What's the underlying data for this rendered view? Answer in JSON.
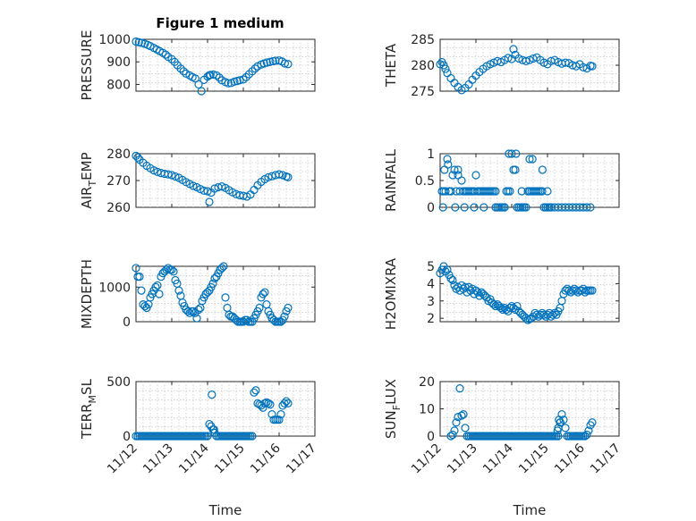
{
  "figure": {
    "title": "Figure 1 medium",
    "marker_color": "#0072BD",
    "axis_color": "#262626",
    "x_tick_labels": [
      "11/12",
      "11/13",
      "11/14",
      "11/15",
      "11/16",
      "11/17"
    ],
    "x_label": "Time"
  },
  "chart_data": [
    {
      "id": "pressure",
      "type": "scatter",
      "title": "Figure 1 medium",
      "ylabel": "PRESSURE",
      "ylabel_main": "PRESSURE",
      "ylabel_sub": "",
      "ylabel_tail": "",
      "xlabel": "",
      "xlim": [
        0,
        5
      ],
      "ylim": [
        770,
        1000
      ],
      "yticks": [
        800,
        900,
        1000
      ],
      "yticklabels": [
        "800",
        "900",
        "1000"
      ],
      "grid": true,
      "x": [
        0.0,
        0.08,
        0.16,
        0.25,
        0.33,
        0.4,
        0.5,
        0.58,
        0.66,
        0.75,
        0.83,
        0.9,
        1.0,
        1.08,
        1.16,
        1.25,
        1.33,
        1.4,
        1.5,
        1.58,
        1.66,
        1.75,
        1.83,
        1.9,
        2.0,
        2.05,
        2.08,
        2.16,
        2.25,
        2.33,
        2.4,
        2.5,
        2.58,
        2.66,
        2.75,
        2.83,
        2.9,
        3.0,
        3.08,
        3.16,
        3.25,
        3.33,
        3.4,
        3.5,
        3.58,
        3.66,
        3.75,
        3.83,
        3.9,
        4.0,
        4.08,
        4.16,
        4.25
      ],
      "y": [
        990,
        987,
        984,
        980,
        975,
        970,
        962,
        955,
        948,
        940,
        932,
        922,
        912,
        900,
        885,
        870,
        858,
        848,
        840,
        832,
        826,
        800,
        770,
        820,
        835,
        840,
        842,
        844,
        840,
        830,
        818,
        810,
        805,
        806,
        812,
        815,
        818,
        822,
        832,
        845,
        858,
        870,
        880,
        888,
        893,
        897,
        900,
        903,
        905,
        906,
        902,
        893,
        890
      ]
    },
    {
      "id": "theta",
      "type": "scatter",
      "ylabel": "THETA",
      "ylabel_main": "THETA",
      "ylabel_sub": "",
      "ylabel_tail": "",
      "xlabel": "",
      "xlim": [
        0,
        5
      ],
      "ylim": [
        275,
        285
      ],
      "yticks": [
        275,
        280,
        285
      ],
      "yticklabels": [
        "275",
        "280",
        "285"
      ],
      "grid": true,
      "x": [
        0.0,
        0.05,
        0.1,
        0.15,
        0.2,
        0.3,
        0.4,
        0.5,
        0.6,
        0.7,
        0.8,
        0.9,
        1.0,
        1.1,
        1.2,
        1.3,
        1.4,
        1.5,
        1.6,
        1.7,
        1.8,
        1.9,
        2.0,
        2.05,
        2.1,
        2.2,
        2.3,
        2.4,
        2.5,
        2.6,
        2.7,
        2.8,
        2.9,
        3.0,
        3.1,
        3.2,
        3.3,
        3.4,
        3.5,
        3.6,
        3.7,
        3.8,
        3.9,
        4.0,
        4.1,
        4.2,
        4.25
      ],
      "y": [
        280.2,
        280.6,
        280.0,
        279.3,
        278.5,
        277.5,
        276.6,
        275.8,
        275.2,
        275.6,
        276.3,
        277.2,
        278.0,
        278.7,
        279.3,
        279.8,
        280.2,
        280.5,
        280.8,
        280.6,
        281.0,
        281.4,
        281.2,
        283.1,
        282.0,
        281.3,
        281.0,
        280.8,
        281.0,
        281.3,
        281.5,
        281.0,
        280.5,
        280.2,
        280.8,
        281.0,
        280.6,
        280.3,
        280.5,
        280.4,
        280.0,
        279.8,
        280.2,
        279.6,
        279.4,
        279.9,
        279.8
      ]
    },
    {
      "id": "air_temp",
      "type": "scatter",
      "ylabel": "AIR_TEMP",
      "ylabel_main": "AIR",
      "ylabel_sub": "T",
      "ylabel_tail": "EMP",
      "xlabel": "",
      "xlim": [
        0,
        5
      ],
      "ylim": [
        260,
        280
      ],
      "yticks": [
        260,
        270,
        280
      ],
      "yticklabels": [
        "260",
        "270",
        "280"
      ],
      "grid": true,
      "x": [
        0.0,
        0.05,
        0.1,
        0.2,
        0.3,
        0.4,
        0.5,
        0.6,
        0.7,
        0.8,
        0.9,
        1.0,
        1.1,
        1.2,
        1.3,
        1.4,
        1.5,
        1.6,
        1.7,
        1.8,
        1.9,
        2.0,
        2.05,
        2.1,
        2.2,
        2.3,
        2.4,
        2.5,
        2.6,
        2.7,
        2.8,
        2.9,
        3.0,
        3.1,
        3.2,
        3.3,
        3.4,
        3.5,
        3.6,
        3.7,
        3.8,
        3.9,
        4.0,
        4.1,
        4.2,
        4.25
      ],
      "y": [
        279.2,
        278.6,
        277.8,
        276.6,
        275.5,
        274.6,
        273.8,
        273.2,
        272.8,
        272.5,
        272.3,
        272.0,
        271.5,
        271.0,
        270.2,
        269.4,
        268.7,
        268.0,
        267.5,
        266.8,
        266.2,
        266.0,
        262.0,
        265.5,
        267.0,
        267.5,
        267.8,
        267.2,
        266.4,
        265.6,
        264.9,
        264.5,
        264.3,
        264.0,
        264.8,
        266.5,
        268.2,
        269.5,
        270.5,
        271.2,
        271.6,
        272.0,
        272.3,
        272.0,
        271.5,
        271.2
      ]
    },
    {
      "id": "rainfall",
      "type": "scatter",
      "ylabel": "RAINFALL",
      "ylabel_main": "RAINFALL",
      "ylabel_sub": "",
      "ylabel_tail": "",
      "xlabel": "",
      "xlim": [
        0,
        5
      ],
      "ylim": [
        0,
        1
      ],
      "yticks": [
        0,
        0.5,
        1
      ],
      "yticklabels": [
        "0",
        "0.5",
        "1"
      ],
      "grid": true,
      "x": [
        0.05,
        0.1,
        0.15,
        0.2,
        0.25,
        0.3,
        0.4,
        0.45,
        0.5,
        0.55,
        0.6,
        0.65,
        0.7,
        0.75,
        0.8,
        0.85,
        0.9,
        0.95,
        1.0,
        1.05,
        1.1,
        1.15,
        1.2,
        1.25,
        1.3,
        1.35,
        1.4,
        1.45,
        1.5,
        1.55,
        1.6,
        1.65,
        1.7,
        1.75,
        1.8,
        1.85,
        1.9,
        1.95,
        2.0,
        2.05,
        2.1,
        2.15,
        2.2,
        2.25,
        2.3,
        2.35,
        2.4,
        2.45,
        2.5,
        2.55,
        2.6,
        2.65,
        2.7,
        2.75,
        2.8,
        2.85,
        2.9,
        2.95,
        3.0,
        3.05,
        3.1,
        3.2,
        3.3,
        3.4,
        3.5,
        3.6,
        3.7,
        3.8,
        3.9,
        4.0,
        4.1,
        4.2,
        0.08,
        0.12,
        0.22,
        0.35,
        0.42,
        0.5,
        0.68,
        0.95,
        1.22,
        1.55,
        1.8,
        1.92,
        2.12,
        2.28,
        2.5,
        2.58,
        2.86,
        3.0
      ],
      "y": [
        0.3,
        0.3,
        0.3,
        0.9,
        0.3,
        0.3,
        0.7,
        0.3,
        0.6,
        0.3,
        0.5,
        0.3,
        0.3,
        0.3,
        0.3,
        0.3,
        0.3,
        0.3,
        0.6,
        0.3,
        0.3,
        0.3,
        0.3,
        0.3,
        0.3,
        0.3,
        0.3,
        0.3,
        0.3,
        0.3,
        0.0,
        0.0,
        0.0,
        0.0,
        0.0,
        0.3,
        0.3,
        0.3,
        1.0,
        0.7,
        0.7,
        0.0,
        0.0,
        0.0,
        0.0,
        0.0,
        0.0,
        0.3,
        0.3,
        0.3,
        0.3,
        0.3,
        0.3,
        0.3,
        0.3,
        0.3,
        0.0,
        0.0,
        0.0,
        0.0,
        0.0,
        0.0,
        0.0,
        0.0,
        0.0,
        0.0,
        0.0,
        0.0,
        0.0,
        0.0,
        0.0,
        0.0,
        0.0,
        0.7,
        0.8,
        0.6,
        0.0,
        0.7,
        0.0,
        0.0,
        0.0,
        0.0,
        0.0,
        1.0,
        1.0,
        0.3,
        0.9,
        0.9,
        0.7,
        0.3
      ]
    },
    {
      "id": "mixdepth",
      "type": "scatter",
      "ylabel": "MIXDEPTH",
      "ylabel_main": "MIXDEPTH",
      "ylabel_sub": "",
      "ylabel_tail": "",
      "xlabel": "",
      "xlim": [
        0,
        5
      ],
      "ylim": [
        0,
        1600
      ],
      "yticks": [
        0,
        1000
      ],
      "yticklabels": [
        "0",
        "1000"
      ],
      "grid": true,
      "x": [
        0.0,
        0.05,
        0.1,
        0.15,
        0.2,
        0.25,
        0.3,
        0.35,
        0.4,
        0.45,
        0.5,
        0.55,
        0.6,
        0.65,
        0.7,
        0.75,
        0.8,
        0.85,
        0.9,
        0.95,
        1.0,
        1.05,
        1.1,
        1.15,
        1.2,
        1.25,
        1.3,
        1.35,
        1.4,
        1.45,
        1.5,
        1.55,
        1.6,
        1.65,
        1.7,
        1.75,
        1.8,
        1.85,
        1.9,
        1.95,
        2.0,
        2.05,
        2.1,
        2.15,
        2.2,
        2.25,
        2.3,
        2.35,
        2.4,
        2.45,
        2.5,
        2.55,
        2.6,
        2.65,
        2.7,
        2.75,
        2.8,
        2.85,
        2.9,
        2.95,
        3.0,
        3.05,
        3.1,
        3.15,
        3.2,
        3.25,
        3.3,
        3.35,
        3.4,
        3.45,
        3.5,
        3.55,
        3.6,
        3.65,
        3.7,
        3.75,
        3.8,
        3.85,
        3.9,
        3.95,
        4.0,
        4.05,
        4.1,
        4.15,
        4.2,
        4.25
      ],
      "y": [
        1550,
        1300,
        1300,
        900,
        500,
        450,
        400,
        500,
        700,
        800,
        900,
        1000,
        1050,
        800,
        1300,
        1400,
        1450,
        1500,
        1550,
        1500,
        1500,
        1450,
        1200,
        1100,
        900,
        750,
        550,
        450,
        350,
        300,
        250,
        300,
        300,
        250,
        100,
        350,
        400,
        600,
        700,
        800,
        850,
        900,
        1000,
        1100,
        1250,
        1300,
        1400,
        1500,
        1550,
        1600,
        700,
        400,
        200,
        150,
        150,
        100,
        50,
        0,
        0,
        0,
        0,
        50,
        50,
        0,
        0,
        0,
        100,
        200,
        300,
        400,
        700,
        800,
        850,
        500,
        300,
        200,
        100,
        50,
        0,
        0,
        0,
        0,
        50,
        150,
        300,
        400
      ]
    },
    {
      "id": "h2omixra",
      "type": "scatter",
      "ylabel": "H2OMIXRA",
      "ylabel_main": "H2OMIXRA",
      "ylabel_sub": "",
      "ylabel_tail": "",
      "xlabel": "",
      "xlim": [
        0,
        5
      ],
      "ylim": [
        1.8,
        5
      ],
      "yticks": [
        2,
        3,
        4,
        5
      ],
      "yticklabels": [
        "2",
        "3",
        "4",
        "5"
      ],
      "grid": true,
      "x": [
        0.0,
        0.05,
        0.1,
        0.15,
        0.2,
        0.25,
        0.3,
        0.35,
        0.4,
        0.45,
        0.5,
        0.55,
        0.6,
        0.65,
        0.7,
        0.75,
        0.8,
        0.85,
        0.9,
        0.95,
        1.0,
        1.05,
        1.1,
        1.15,
        1.2,
        1.25,
        1.3,
        1.35,
        1.4,
        1.45,
        1.5,
        1.55,
        1.6,
        1.65,
        1.7,
        1.75,
        1.8,
        1.85,
        1.9,
        1.95,
        2.0,
        2.05,
        2.1,
        2.15,
        2.2,
        2.25,
        2.3,
        2.35,
        2.4,
        2.45,
        2.5,
        2.55,
        2.6,
        2.65,
        2.7,
        2.75,
        2.8,
        2.85,
        2.9,
        2.95,
        3.0,
        3.05,
        3.1,
        3.15,
        3.2,
        3.25,
        3.3,
        3.35,
        3.4,
        3.45,
        3.5,
        3.55,
        3.6,
        3.65,
        3.7,
        3.75,
        3.8,
        3.85,
        3.9,
        3.95,
        4.0,
        4.05,
        4.1,
        4.15,
        4.2,
        4.25
      ],
      "y": [
        4.6,
        4.8,
        5.0,
        4.7,
        4.8,
        4.5,
        4.3,
        4.2,
        3.9,
        3.7,
        3.8,
        3.6,
        3.9,
        3.7,
        3.8,
        3.5,
        3.8,
        3.6,
        3.7,
        3.4,
        3.6,
        3.5,
        3.3,
        3.5,
        3.4,
        3.3,
        3.2,
        3.0,
        3.1,
        2.9,
        2.8,
        2.7,
        2.8,
        2.7,
        2.6,
        2.5,
        2.6,
        2.5,
        2.4,
        2.6,
        2.7,
        2.6,
        2.5,
        2.7,
        2.4,
        2.3,
        2.2,
        2.1,
        2.0,
        1.9,
        1.95,
        2.0,
        2.1,
        2.3,
        2.2,
        2.1,
        2.2,
        2.3,
        2.2,
        2.1,
        2.2,
        2.3,
        2.1,
        2.2,
        2.3,
        2.2,
        2.4,
        2.6,
        3.0,
        3.4,
        3.6,
        3.7,
        3.6,
        3.5,
        3.6,
        3.7,
        3.6,
        3.5,
        3.6,
        3.6,
        3.7,
        3.5,
        3.6,
        3.6,
        3.6,
        3.6
      ]
    },
    {
      "id": "terr_msl",
      "type": "scatter",
      "ylabel": "TERR_MSL",
      "ylabel_main": "TERR",
      "ylabel_sub": "M",
      "ylabel_tail": "SL",
      "xlabel": "Time",
      "xlim": [
        0,
        5
      ],
      "ylim": [
        0,
        500
      ],
      "yticks": [
        0,
        500
      ],
      "yticklabels": [
        "0",
        "500"
      ],
      "grid": true,
      "x": [
        0.0,
        0.05,
        0.1,
        0.15,
        0.2,
        0.25,
        0.3,
        0.35,
        0.4,
        0.45,
        0.5,
        0.55,
        0.6,
        0.65,
        0.7,
        0.75,
        0.8,
        0.85,
        0.9,
        0.95,
        1.0,
        1.05,
        1.1,
        1.15,
        1.2,
        1.25,
        1.3,
        1.35,
        1.4,
        1.45,
        1.5,
        1.55,
        1.6,
        1.65,
        1.7,
        1.75,
        1.8,
        1.85,
        1.9,
        1.95,
        2.0,
        2.05,
        2.1,
        2.15,
        2.2,
        2.25,
        2.3,
        2.35,
        2.4,
        2.45,
        2.5,
        2.55,
        2.6,
        2.65,
        2.7,
        2.75,
        2.8,
        2.85,
        2.9,
        2.95,
        3.0,
        3.05,
        3.1,
        3.15,
        3.2,
        3.25,
        3.3,
        3.35,
        3.4,
        3.45,
        3.5,
        3.55,
        3.6,
        3.65,
        3.7,
        3.75,
        3.8,
        3.85,
        3.9,
        3.95,
        4.0,
        4.05,
        4.1,
        4.15,
        4.2,
        4.25,
        2.12,
        2.18
      ],
      "y": [
        0,
        0,
        0,
        0,
        0,
        0,
        0,
        0,
        0,
        0,
        0,
        0,
        0,
        0,
        0,
        0,
        0,
        0,
        0,
        0,
        0,
        0,
        0,
        0,
        0,
        0,
        0,
        0,
        0,
        0,
        0,
        0,
        0,
        0,
        0,
        0,
        0,
        0,
        0,
        0,
        0,
        110,
        90,
        60,
        30,
        0,
        0,
        0,
        0,
        0,
        0,
        0,
        0,
        0,
        0,
        0,
        0,
        0,
        0,
        0,
        0,
        0,
        0,
        0,
        0,
        0,
        400,
        420,
        300,
        290,
        280,
        260,
        300,
        310,
        300,
        290,
        200,
        150,
        150,
        150,
        150,
        200,
        280,
        300,
        320,
        300,
        380,
        60
      ]
    },
    {
      "id": "sun_flux",
      "type": "scatter",
      "ylabel": "SUN_FLUX",
      "ylabel_main": "SUN",
      "ylabel_sub": "F",
      "ylabel_tail": "LUX",
      "xlabel": "Time",
      "xlim": [
        0,
        5
      ],
      "ylim": [
        0,
        20
      ],
      "yticks": [
        0,
        10,
        20
      ],
      "yticklabels": [
        "0",
        "10",
        "20"
      ],
      "grid": true,
      "x": [
        0.3,
        0.35,
        0.4,
        0.45,
        0.5,
        0.55,
        0.6,
        0.65,
        0.7,
        0.75,
        0.8,
        0.85,
        0.9,
        0.95,
        1.0,
        1.05,
        1.1,
        1.15,
        1.2,
        1.25,
        1.3,
        1.35,
        1.4,
        1.45,
        1.5,
        1.55,
        1.6,
        1.65,
        1.7,
        1.75,
        1.8,
        1.85,
        1.9,
        1.95,
        2.0,
        2.05,
        2.1,
        2.15,
        2.2,
        2.25,
        2.3,
        2.35,
        2.4,
        2.45,
        2.5,
        2.55,
        2.6,
        2.65,
        2.7,
        2.75,
        2.8,
        2.85,
        2.9,
        2.95,
        3.0,
        3.05,
        3.1,
        3.15,
        3.2,
        3.25,
        3.3,
        3.35,
        3.4,
        3.45,
        3.5,
        3.55,
        3.6,
        3.65,
        3.7,
        3.75,
        3.8,
        3.85,
        3.9,
        3.95,
        4.0,
        4.05,
        4.1,
        4.15,
        4.2,
        4.25,
        3.28,
        3.32,
        3.36,
        3.3
      ],
      "y": [
        0,
        0.5,
        2,
        5,
        7,
        17.5,
        7.5,
        8,
        3,
        0,
        0,
        0,
        0,
        0,
        0,
        0,
        0,
        0,
        0,
        0,
        0,
        0,
        0,
        0,
        0,
        0,
        0,
        0,
        0,
        0,
        0,
        0,
        0,
        0,
        0,
        0,
        0,
        0,
        0,
        0,
        0,
        0,
        0,
        0,
        0,
        0,
        0,
        0,
        0,
        0,
        0,
        0,
        0,
        0,
        0,
        0,
        0,
        0,
        0,
        0,
        3,
        5,
        8,
        6,
        3,
        0,
        0,
        0,
        0,
        0,
        0,
        0,
        0,
        0,
        0,
        0,
        0.5,
        2,
        4,
        5,
        2,
        6,
        5,
        0
      ]
    }
  ]
}
